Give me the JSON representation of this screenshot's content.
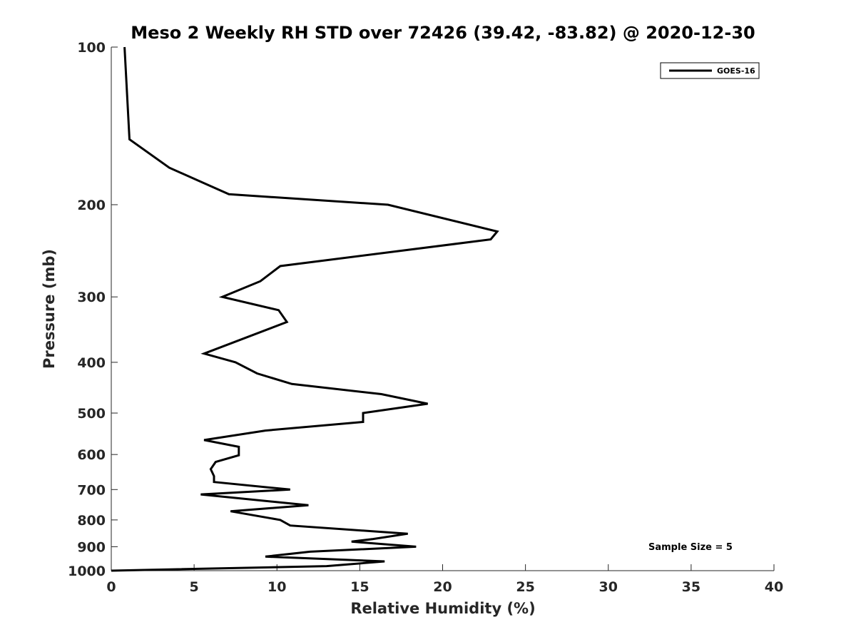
{
  "chart_data": {
    "type": "line",
    "title": "Meso 2 Weekly RH STD over 72426 (39.42, -83.82) @ 2020-12-30",
    "xlabel": "Relative Humidity (%)",
    "ylabel": "Pressure (mb)",
    "xlim": [
      0,
      40
    ],
    "ylim": [
      100,
      1000
    ],
    "y_scale": "log",
    "y_reversed": true,
    "x_ticks": [
      "0",
      "5",
      "10",
      "15",
      "20",
      "25",
      "30",
      "35",
      "40"
    ],
    "y_ticks": [
      "100",
      "200",
      "300",
      "400",
      "500",
      "600",
      "700",
      "800",
      "900",
      "1000"
    ],
    "grid": false,
    "legend_position": "top-right",
    "series": [
      {
        "name": "GOES-16",
        "color": "#000000",
        "x": [
          0.8,
          1.1,
          3.5,
          7.1,
          16.7,
          23.3,
          22.9,
          10.2,
          9.0,
          6.7,
          10.1,
          10.6,
          5.6,
          7.5,
          8.8,
          10.9,
          16.3,
          19.1,
          15.2,
          15.2,
          9.3,
          5.6,
          7.7,
          7.7,
          6.3,
          6.0,
          6.2,
          6.2,
          10.8,
          5.4,
          11.9,
          7.2,
          10.2,
          10.8,
          17.9,
          15.8,
          14.5,
          18.4,
          12.0,
          9.3,
          16.5,
          13.0,
          0
        ],
        "y": [
          100,
          150,
          170,
          191,
          200,
          225,
          233,
          262,
          280,
          300,
          318,
          335,
          385,
          400,
          420,
          440,
          460,
          480,
          500,
          520,
          540,
          563,
          580,
          602,
          620,
          640,
          660,
          677,
          700,
          715,
          750,
          770,
          800,
          820,
          850,
          870,
          880,
          900,
          920,
          940,
          960,
          980,
          1000
        ]
      }
    ],
    "annotations": [
      "Sample Size = 5"
    ]
  }
}
